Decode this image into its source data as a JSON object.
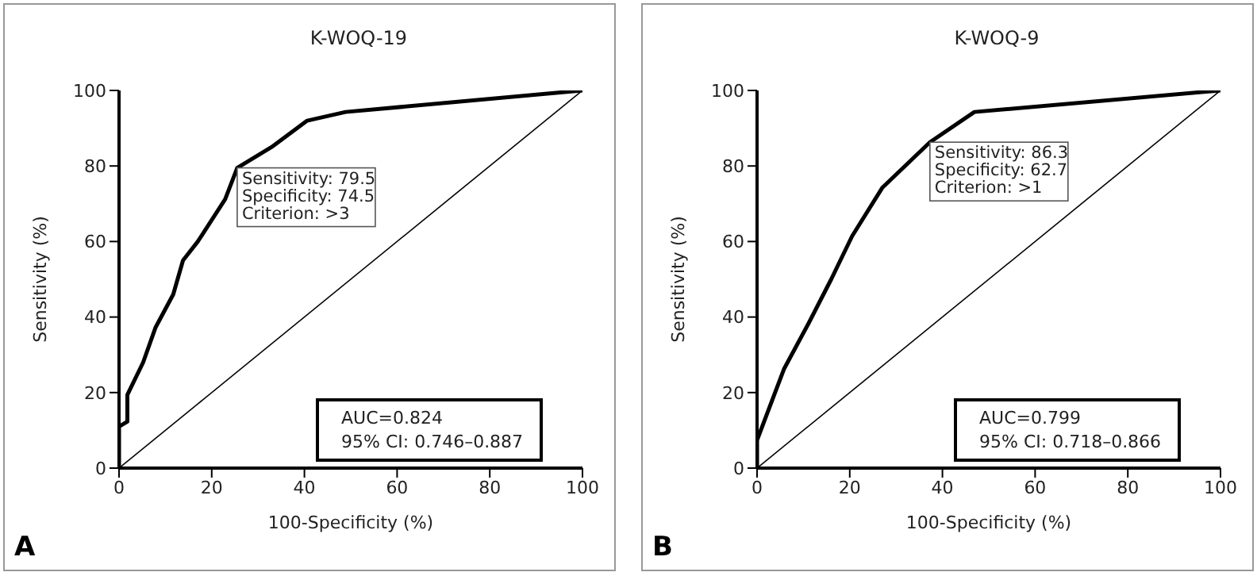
{
  "chart_data": [
    {
      "type": "line",
      "title": "K-WOQ-19",
      "xlabel": "100-Specificity (%)",
      "ylabel": "Sensitivity (%)",
      "xlim": [
        0,
        100
      ],
      "ylim": [
        0,
        100
      ],
      "xticks": [
        0,
        20,
        40,
        60,
        80,
        100
      ],
      "yticks": [
        0,
        20,
        40,
        60,
        80,
        100
      ],
      "marker": "none",
      "line_style": "solid",
      "series": [
        {
          "color": "#000000",
          "x": [
            0,
            0,
            1.8,
            1.8,
            5.2,
            7.9,
            11.7,
            13.8,
            17,
            22.9,
            25.5,
            32.9,
            40.6,
            48.9,
            100
          ],
          "values": [
            0,
            11,
            12.3,
            19.4,
            28,
            37.3,
            46,
            55,
            60,
            71.2,
            79.5,
            85,
            92,
            94.3,
            100
          ]
        },
        {
          "color": "#000000",
          "x": [
            0,
            100
          ],
          "values": [
            0,
            100
          ]
        }
      ],
      "annotations": [
        {
          "text": "Sensitivity: 79.5\nSpecificity: 74.5\nCriterion: >3",
          "x": 25.5,
          "y": 79.5
        },
        "AUC=0.824\n95% CI: 0.746–0.887",
        "A"
      ]
    },
    {
      "type": "line",
      "title": "K-WOQ-9",
      "xlabel": "100-Specificity (%)",
      "ylabel": "Sensitivity (%)",
      "xlim": [
        0,
        100
      ],
      "ylim": [
        0,
        100
      ],
      "xticks": [
        0,
        20,
        40,
        60,
        80,
        100
      ],
      "yticks": [
        0,
        20,
        40,
        60,
        80,
        100
      ],
      "marker": "none",
      "line_style": "solid",
      "series": [
        {
          "color": "#000000",
          "x": [
            0,
            0,
            5.8,
            11.1,
            16,
            20.5,
            27,
            37.3,
            46.9,
            100
          ],
          "values": [
            0,
            7.4,
            26.2,
            38.3,
            50,
            61.4,
            74.2,
            86.3,
            94.3,
            100
          ]
        },
        {
          "color": "#000000",
          "x": [
            0,
            100
          ],
          "values": [
            0,
            100
          ]
        }
      ],
      "annotations": [
        {
          "text": "Sensitivity: 86.3\nSpecificity: 62.7\nCriterion: >1",
          "x": 37.3,
          "y": 86.3
        },
        "AUC=0.799\n95% CI: 0.718–0.866",
        "B"
      ]
    }
  ]
}
